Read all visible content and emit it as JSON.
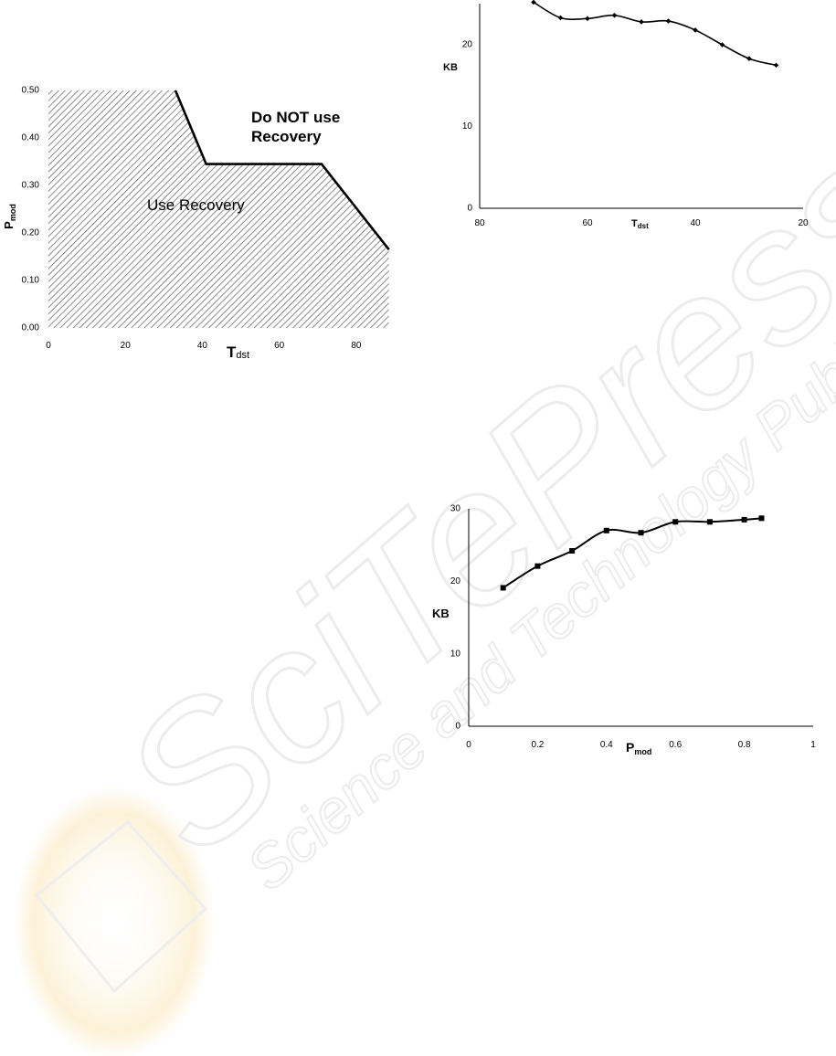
{
  "chart_data": [
    {
      "type": "area",
      "title": "",
      "xlabel": "T",
      "xlabel_sub": "dst",
      "ylabel": "P",
      "ylabel_sub": "mod",
      "xlim": [
        0,
        90
      ],
      "ylim": [
        0,
        0.5
      ],
      "x_ticks": [
        "0",
        "20",
        "40",
        "60",
        "80"
      ],
      "y_ticks": [
        "0.00",
        "0.10",
        "0.20",
        "0.30",
        "0.40",
        "0.50"
      ],
      "boundary": {
        "x": [
          33,
          41,
          71,
          90
        ],
        "y": [
          0.5,
          0.345,
          0.345,
          0.165
        ]
      },
      "region_labels": {
        "below": "Use Recovery",
        "above_line1": "Do NOT use",
        "above_line2": "Recovery"
      },
      "fill": "hatched",
      "grid": false
    },
    {
      "type": "line",
      "title": "",
      "xlabel": "T",
      "xlabel_sub": "dst",
      "ylabel": "KB",
      "xlim": [
        80,
        20
      ],
      "ylim": [
        0,
        25
      ],
      "x_ticks": [
        "80",
        "60",
        "40",
        "20"
      ],
      "y_ticks": [
        "0",
        "10",
        "20"
      ],
      "series": [
        {
          "marker": "diamond",
          "x": [
            70,
            65,
            60,
            55,
            50,
            45,
            40,
            35,
            30,
            25
          ],
          "y": [
            25.2,
            23.3,
            23.2,
            23.6,
            22.8,
            22.9,
            21.8,
            20.0,
            18.3,
            17.5
          ]
        }
      ],
      "grid": false
    },
    {
      "type": "line",
      "title": "",
      "xlabel": "P",
      "xlabel_sub": "mod",
      "ylabel": "KB",
      "xlim": [
        0,
        1
      ],
      "ylim": [
        0,
        30
      ],
      "x_ticks": [
        "0",
        "0.2",
        "0.4",
        "0.6",
        "0.8",
        "1"
      ],
      "y_ticks": [
        "0",
        "10",
        "20",
        "30"
      ],
      "series": [
        {
          "marker": "square",
          "x": [
            0.1,
            0.2,
            0.3,
            0.4,
            0.5,
            0.6,
            0.7,
            0.8,
            0.85
          ],
          "y": [
            19.1,
            22.1,
            24.2,
            27.0,
            26.7,
            28.2,
            28.2,
            28.5,
            28.7
          ]
        }
      ],
      "grid": false
    }
  ],
  "watermark": {
    "text_big": "SciTePress",
    "text_small": "Science and Technology Publications"
  },
  "colors": {
    "ink": "#000000",
    "watermark": "#e6e6e6",
    "logo_accent": "#fbe7b8"
  }
}
